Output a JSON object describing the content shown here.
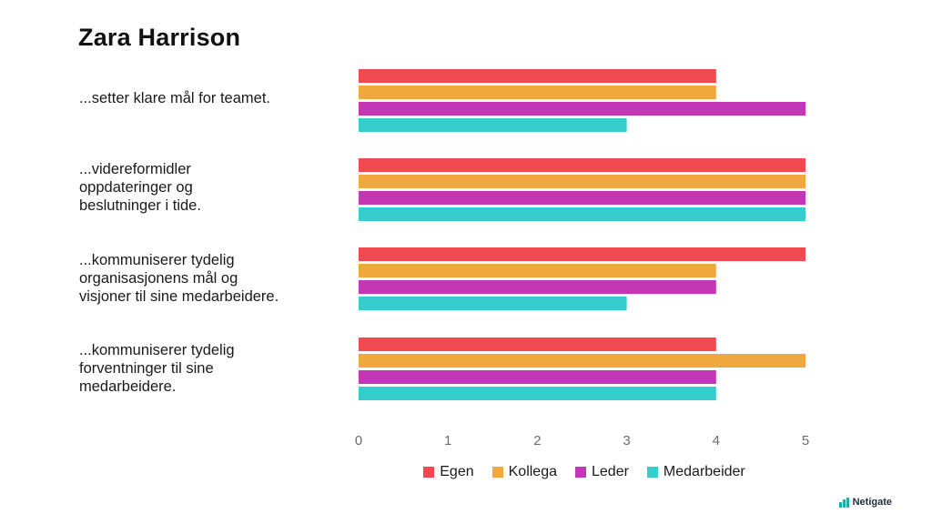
{
  "header": {
    "title": "Zara Harrison"
  },
  "chart_data": {
    "type": "bar",
    "orientation": "horizontal",
    "categories": [
      "...setter klare mål for teamet.",
      "...videreformidler\noppdateringer og\nbeslutninger i tide.",
      "...kommuniserer tydelig\norganisasjonens mål og\nvisjoner til sine medarbeidere.",
      "...kommuniserer tydelig\nforventninger til sine\nmedarbeidere."
    ],
    "series": [
      {
        "name": "Egen",
        "color": "#f04a50",
        "values": [
          4,
          5,
          5,
          4
        ]
      },
      {
        "name": "Kollega",
        "color": "#f0a83e",
        "values": [
          4,
          5,
          4,
          5
        ]
      },
      {
        "name": "Leder",
        "color": "#c337b7",
        "values": [
          5,
          5,
          4,
          4
        ]
      },
      {
        "name": "Medarbeider",
        "color": "#35cccb",
        "values": [
          3,
          5,
          3,
          4
        ]
      }
    ],
    "xlim": [
      0,
      5
    ],
    "xticks": [
      "0",
      "1",
      "2",
      "3",
      "4",
      "5"
    ],
    "grid": false,
    "legend_position": "bottom"
  },
  "brand": {
    "name": "Netigate",
    "icon": "bar-logo-icon"
  }
}
